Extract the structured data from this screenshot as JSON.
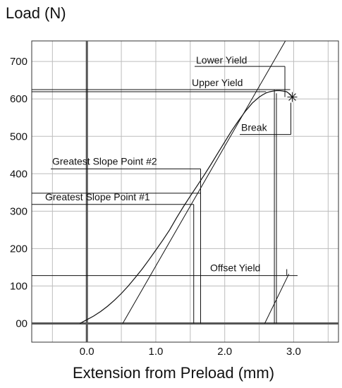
{
  "chart_data": {
    "type": "line",
    "ylabel": "Load (N)",
    "xlabel": "Extension from Preload (mm)",
    "xlim": [
      -0.8,
      3.65
    ],
    "ylim": [
      -50,
      755
    ],
    "x_ticks": [
      0.0,
      1.0,
      2.0,
      3.0
    ],
    "x_tick_labels": [
      "0.0",
      "1.0",
      "2.0",
      "3.0"
    ],
    "y_ticks": [
      0,
      100,
      200,
      300,
      400,
      500,
      600,
      700
    ],
    "y_tick_labels": [
      "00",
      "100",
      "200",
      "300",
      "400",
      "500",
      "600",
      "700"
    ],
    "grid": true,
    "grid_x": [
      -0.5,
      0.0,
      0.5,
      1.0,
      1.5,
      2.0,
      2.5,
      3.0,
      3.5
    ],
    "grid_y": [
      0,
      100,
      200,
      300,
      400,
      500,
      600,
      700
    ],
    "series": [
      {
        "x": [
          -0.1,
          -0.05,
          0.0,
          0.1,
          0.2,
          0.3,
          0.4,
          0.5,
          0.6,
          0.7,
          0.8,
          0.9,
          1.0,
          1.1,
          1.2,
          1.3,
          1.4,
          1.5,
          1.6,
          1.7,
          1.8,
          1.9,
          2.0,
          2.1,
          2.2,
          2.3,
          2.4,
          2.5,
          2.55,
          2.6,
          2.65,
          2.7,
          2.75,
          2.8,
          2.85,
          2.9,
          2.95,
          2.98
        ],
        "y": [
          0,
          5,
          10,
          20,
          32,
          46,
          62,
          80,
          100,
          122,
          145,
          170,
          196,
          222,
          250,
          282,
          312,
          340,
          368,
          396,
          425,
          455,
          485,
          515,
          542,
          567,
          589,
          605,
          611,
          616,
          619,
          621,
          622,
          622,
          621,
          619,
          612,
          605
        ]
      }
    ],
    "break_marker": {
      "x": 2.98,
      "y": 605
    },
    "lines": {
      "greatest_slope": {
        "x": [
          0.52,
          2.88
        ],
        "y": [
          0,
          755
        ]
      },
      "offset": {
        "x": [
          2.58,
          2.93
        ],
        "y": [
          0,
          132
        ]
      }
    },
    "annotations": [
      {
        "label": "Lower Yield",
        "x": 2.75,
        "y": 687
      },
      {
        "label": "Upper Yield",
        "x": 2.72,
        "y": 625
      },
      {
        "label": "Break",
        "x": 2.98,
        "y": 505
      },
      {
        "label": "Greatest Slope Point #2",
        "x": 1.65,
        "y": 413
      },
      {
        "label": "Greatest Slope Point #1",
        "x": 1.55,
        "y": 318
      },
      {
        "label": "Offset Yield",
        "x": 2.9,
        "y": 128
      }
    ]
  }
}
